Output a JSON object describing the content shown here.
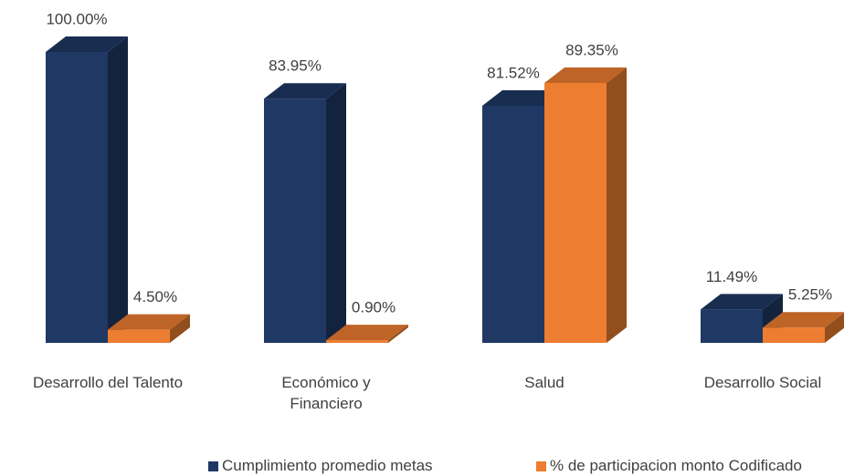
{
  "chart_data": {
    "type": "bar3d",
    "categories": [
      "Desarrollo del Talento",
      "Económico y Financiero",
      "Salud",
      "Desarrollo Social"
    ],
    "series": [
      {
        "name": "Cumplimiento promedio metas",
        "color": "#1f3864",
        "values": [
          100,
          83.95,
          81.52,
          11.49
        ],
        "value_labels": [
          "100.00%",
          "83.95%",
          "81.52%",
          "11.49%"
        ]
      },
      {
        "name": "% de participacion monto Codificado",
        "color": "#ed7d31",
        "values": [
          4.5,
          0.9,
          89.35,
          5.25
        ],
        "value_labels": [
          "4.50%",
          "0.90%",
          "89.35%",
          "5.25%"
        ]
      }
    ]
  }
}
